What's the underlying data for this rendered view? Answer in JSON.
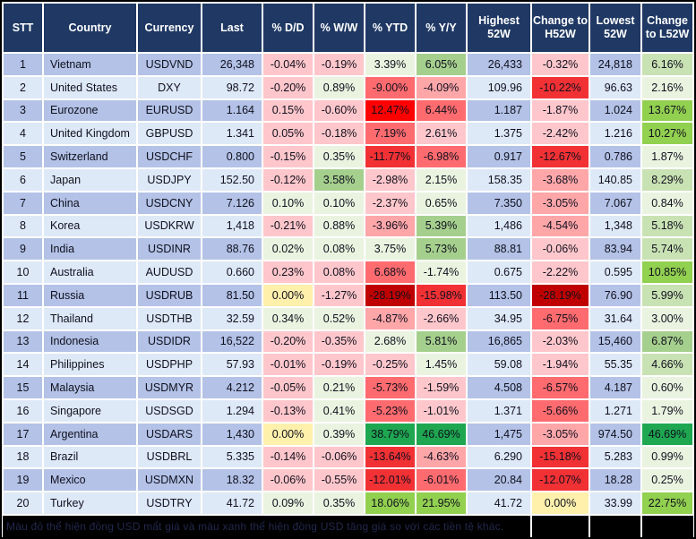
{
  "palette": {
    "headerBg": "#1F3864",
    "headerText": "#FFFFFF",
    "rowOdd": "#B3C2E6",
    "rowEven": "#DEE9F7",
    "gridline": "#FFFFFF",
    "footerBg": "#000000",
    "p1": "#FFC7CB",
    "p2": "#FFA6A9",
    "p3": "#FF6B6E",
    "p4": "#F23134",
    "p5": "#FF0000",
    "p6": "#C00000",
    "g1": "#EAF3DF",
    "g2": "#C9E2B3",
    "g3": "#A5CF8D",
    "g4": "#92D050",
    "g5": "#1EA750",
    "y": "#FFF0AC"
  },
  "footer": {
    "note": "Màu đỏ thể hiện đồng USD mất giá và màu xanh thể hiện đồng USD tăng giá so với các tiền tệ khác."
  },
  "chart_data": {
    "type": "table",
    "title": "",
    "columns": [
      "STT",
      "Country",
      "Currency",
      "Last",
      "% D/D",
      "% W/W",
      "% YTD",
      "% Y/Y",
      "Highest 52W",
      "Change to H52W",
      "Lowest 52W",
      "Change to L52W"
    ],
    "rows": [
      [
        "1",
        "Vietnam",
        "USDVND",
        "26,348",
        "-0.04%",
        "-0.19%",
        "3.39%",
        "6.05%",
        "26,433",
        "-0.32%",
        "24,818",
        "6.16%"
      ],
      [
        "2",
        "United States",
        "DXY",
        "98.72",
        "-0.20%",
        "0.89%",
        "-9.00%",
        "-4.09%",
        "109.96",
        "-10.22%",
        "96.63",
        "2.16%"
      ],
      [
        "3",
        "Eurozone",
        "EURUSD",
        "1.164",
        "0.15%",
        "-0.60%",
        "12.47%",
        "6.44%",
        "1.187",
        "-1.87%",
        "1.024",
        "13.67%"
      ],
      [
        "4",
        "United Kingdom",
        "GBPUSD",
        "1.341",
        "0.05%",
        "-0.18%",
        "7.19%",
        "2.61%",
        "1.375",
        "-2.42%",
        "1.216",
        "10.27%"
      ],
      [
        "5",
        "Switzerland",
        "USDCHF",
        "0.800",
        "-0.15%",
        "0.35%",
        "-11.77%",
        "-6.98%",
        "0.917",
        "-12.67%",
        "0.786",
        "1.87%"
      ],
      [
        "6",
        "Japan",
        "USDJPY",
        "152.50",
        "-0.12%",
        "3.58%",
        "-2.98%",
        "2.15%",
        "158.35",
        "-3.68%",
        "140.85",
        "8.29%"
      ],
      [
        "7",
        "China",
        "USDCNY",
        "7.126",
        "0.10%",
        "0.10%",
        "-2.37%",
        "0.65%",
        "7.350",
        "-3.05%",
        "7.067",
        "0.84%"
      ],
      [
        "8",
        "Korea",
        "USDKRW",
        "1,418",
        "-0.21%",
        "0.88%",
        "-3.96%",
        "5.39%",
        "1,486",
        "-4.54%",
        "1,348",
        "5.18%"
      ],
      [
        "9",
        "India",
        "USDINR",
        "88.76",
        "0.02%",
        "0.08%",
        "3.75%",
        "5.73%",
        "88.81",
        "-0.06%",
        "83.94",
        "5.74%"
      ],
      [
        "10",
        "Australia",
        "AUDUSD",
        "0.660",
        "0.23%",
        "0.08%",
        "6.68%",
        "-1.74%",
        "0.675",
        "-2.22%",
        "0.595",
        "10.85%"
      ],
      [
        "11",
        "Russia",
        "USDRUB",
        "81.50",
        "0.00%",
        "-1.27%",
        "-28.19%",
        "-15.98%",
        "113.50",
        "-28.19%",
        "76.90",
        "5.99%"
      ],
      [
        "12",
        "Thailand",
        "USDTHB",
        "32.59",
        "0.34%",
        "0.52%",
        "-4.87%",
        "-2.66%",
        "34.95",
        "-6.75%",
        "31.64",
        "3.00%"
      ],
      [
        "13",
        "Indonesia",
        "USDIDR",
        "16,522",
        "-0.20%",
        "-0.35%",
        "2.68%",
        "5.81%",
        "16,865",
        "-2.03%",
        "15,460",
        "6.87%"
      ],
      [
        "14",
        "Philippines",
        "USDPHP",
        "57.93",
        "-0.01%",
        "-0.19%",
        "-0.25%",
        "1.45%",
        "59.08",
        "-1.94%",
        "55.35",
        "4.66%"
      ],
      [
        "15",
        "Malaysia",
        "USDMYR",
        "4.212",
        "-0.05%",
        "0.21%",
        "-5.73%",
        "-1.59%",
        "4.508",
        "-6.57%",
        "4.187",
        "0.60%"
      ],
      [
        "16",
        "Singapore",
        "USDSGD",
        "1.294",
        "-0.13%",
        "0.41%",
        "-5.23%",
        "-1.01%",
        "1.371",
        "-5.66%",
        "1.271",
        "1.79%"
      ],
      [
        "17",
        "Argentina",
        "USDARS",
        "1,430",
        "0.00%",
        "0.39%",
        "38.79%",
        "46.69%",
        "1,475",
        "-3.05%",
        "974.50",
        "46.69%"
      ],
      [
        "18",
        "Brazil",
        "USDBRL",
        "5.335",
        "-0.14%",
        "-0.06%",
        "-13.64%",
        "-4.63%",
        "6.290",
        "-15.18%",
        "5.283",
        "0.99%"
      ],
      [
        "19",
        "Mexico",
        "USDMXN",
        "18.32",
        "-0.06%",
        "-0.55%",
        "-12.01%",
        "-6.01%",
        "20.84",
        "-12.07%",
        "18.28",
        "0.25%"
      ],
      [
        "20",
        "Turkey",
        "USDTRY",
        "41.72",
        "0.09%",
        "0.35%",
        "18.06%",
        "21.95%",
        "41.72",
        "0.00%",
        "33.99",
        "22.75%"
      ]
    ],
    "percent_columns": [
      4,
      5,
      6,
      7,
      9,
      11
    ],
    "cell_colors": [
      [
        "p1",
        "p1",
        "g1",
        "g3",
        "p1",
        "g2"
      ],
      [
        "p1",
        "g1",
        "p3",
        "p2",
        "p4",
        "g1"
      ],
      [
        "p1",
        "p1",
        "p5",
        "p3",
        "p1",
        "g4"
      ],
      [
        "p1",
        "p1",
        "p3",
        "p1",
        "p1",
        "g4"
      ],
      [
        "p1",
        "g1",
        "p4",
        "p3",
        "p4",
        "g1"
      ],
      [
        "p1",
        "g3",
        "p1",
        "g1",
        "p2",
        "g2"
      ],
      [
        "g1",
        "g1",
        "p1",
        "g1",
        "p2",
        "g1"
      ],
      [
        "p1",
        "g1",
        "p2",
        "g3",
        "p2",
        "g2"
      ],
      [
        "g1",
        "g1",
        "g1",
        "g3",
        "p1",
        "g2"
      ],
      [
        "p1",
        "p1",
        "p3",
        "g1",
        "p1",
        "g4"
      ],
      [
        "y",
        "p1",
        "p6",
        "p4",
        "p6",
        "g2"
      ],
      [
        "g1",
        "g1",
        "p2",
        "p1",
        "p3",
        "g1"
      ],
      [
        "p1",
        "p1",
        "g1",
        "g3",
        "p1",
        "g3"
      ],
      [
        "p1",
        "p1",
        "p1",
        "g1",
        "p1",
        "g2"
      ],
      [
        "p1",
        "g1",
        "p3",
        "p1",
        "p3",
        "g1"
      ],
      [
        "p1",
        "g1",
        "p3",
        "p1",
        "p3",
        "g1"
      ],
      [
        "y",
        "g1",
        "g5",
        "g5",
        "p2",
        "g5"
      ],
      [
        "p1",
        "p1",
        "p4",
        "p2",
        "p4",
        "g1"
      ],
      [
        "p1",
        "p1",
        "p4",
        "p3",
        "p4",
        "g1"
      ],
      [
        "g1",
        "g1",
        "g4",
        "g4",
        "y",
        "g4"
      ]
    ],
    "color_legend": {
      "red_shades": "USD depreciating vs the currency (deeper red = larger move)",
      "green_shades": "USD appreciating vs the currency (deeper green = larger move)",
      "yellow": "0.00% / unchanged"
    },
    "layout": {
      "grid": "white 2px gridlines",
      "banding": "odd rows periwinkle #B3C2E6, even rows pale blue #DEE9F7"
    }
  }
}
